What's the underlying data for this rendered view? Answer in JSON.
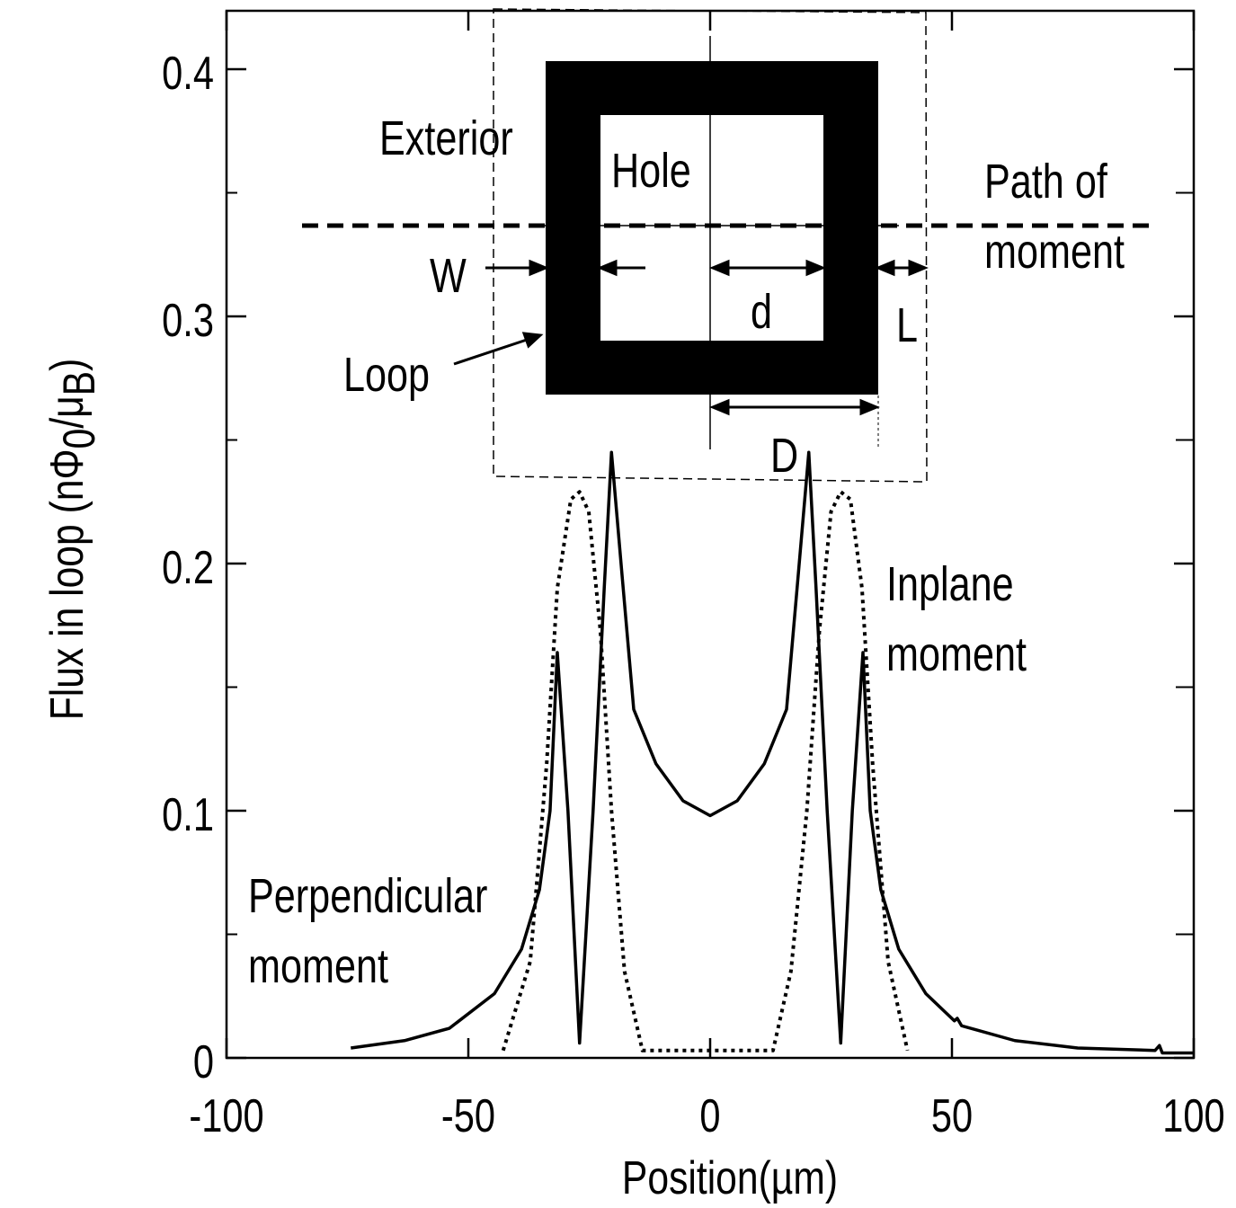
{
  "chart_data": {
    "type": "line",
    "xlabel": "Position(µm)",
    "ylabel_parts": [
      {
        "text": "Flux in loop (nΦ"
      },
      {
        "text": "0",
        "sub": true
      },
      {
        "text": "/μ"
      },
      {
        "text": "B",
        "sub": true
      },
      {
        "text": ")"
      }
    ],
    "xlim": [
      -100,
      100
    ],
    "ylim": [
      0,
      0.42
    ],
    "xticks": [
      -100,
      -50,
      0,
      50,
      100
    ],
    "yticks": [
      0,
      0.1,
      0.2,
      0.3,
      0.4
    ],
    "yticks_minor": [
      0.05,
      0.15,
      0.25,
      0.35
    ],
    "series": [
      {
        "color": "#000000",
        "style": "solid",
        "x": [
          -74.3,
          -63.2,
          -53.9,
          -44.6,
          -39,
          -35.3,
          -33.1,
          -31.6,
          -29.4,
          -27,
          -24.2,
          -21.9,
          -20.4,
          -18.2,
          -15.8,
          -11.2,
          -5.6,
          0,
          5.6,
          11.2,
          15.8,
          18.2,
          20.4,
          21.9,
          24.2,
          27,
          29.4,
          31.6,
          33.1,
          35.3,
          39,
          44.6,
          50.5,
          51.1,
          52,
          63,
          76,
          92,
          92.9,
          93.5,
          100
        ],
        "values": [
          0.004,
          0.007,
          0.012,
          0.026,
          0.044,
          0.068,
          0.1,
          0.164,
          0.1,
          0.006,
          0.1,
          0.19,
          0.245,
          0.195,
          0.141,
          0.119,
          0.104,
          0.098,
          0.104,
          0.119,
          0.141,
          0.195,
          0.245,
          0.19,
          0.1,
          0.006,
          0.1,
          0.164,
          0.1,
          0.068,
          0.044,
          0.026,
          0.015,
          0.016,
          0.013,
          0.007,
          0.004,
          0.003,
          0.005,
          0.002,
          0.002
        ]
      },
      {
        "color": "#000000",
        "style": "dotted",
        "x": [
          -42.8,
          -37.2,
          -33.8,
          -31.6,
          -28.8,
          -27,
          -25.1,
          -22.7,
          -20.4,
          -17.7,
          -14,
          13,
          16.7,
          20,
          22.6,
          25,
          27,
          29,
          31.4,
          33.6,
          36.8,
          40.8
        ],
        "values": [
          0.003,
          0.039,
          0.119,
          0.19,
          0.226,
          0.229,
          0.221,
          0.173,
          0.1,
          0.035,
          0.003,
          0.003,
          0.035,
          0.1,
          0.173,
          0.221,
          0.229,
          0.226,
          0.19,
          0.119,
          0.039,
          0.003
        ]
      }
    ],
    "annotations": [
      {
        "lines": [
          "Exterior"
        ]
      },
      {
        "lines": [
          "Hole"
        ]
      },
      {
        "lines": [
          "Path of",
          "moment"
        ]
      },
      {
        "lines": [
          "W"
        ]
      },
      {
        "lines": [
          "d"
        ]
      },
      {
        "lines": [
          "L"
        ]
      },
      {
        "lines": [
          "Loop"
        ]
      },
      {
        "lines": [
          "D"
        ]
      },
      {
        "lines": [
          "Inplane",
          "moment"
        ]
      },
      {
        "lines": [
          "Perpendicular",
          "moment"
        ]
      }
    ]
  }
}
